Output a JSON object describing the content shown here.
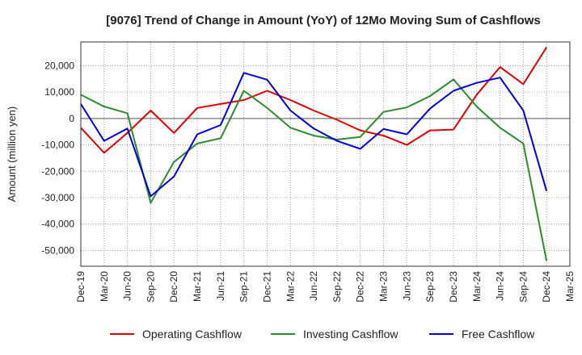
{
  "chart_data": {
    "type": "line",
    "title": "[9076]  Trend of Change in Amount (YoY) of 12Mo Moving Sum of Cashflows",
    "xlabel": "",
    "ylabel": "Amount (million yen)",
    "ylim": [
      -56000,
      29000
    ],
    "yticks": [
      20000,
      10000,
      0,
      -10000,
      -20000,
      -30000,
      -40000,
      -50000
    ],
    "ytick_labels": [
      "20,000",
      "10,000",
      "0",
      "-10,000",
      "-20,000",
      "-30,000",
      "-40,000",
      "-50,000"
    ],
    "categories": [
      "Dec-19",
      "Mar-20",
      "Jun-20",
      "Sep-20",
      "Dec-20",
      "Mar-21",
      "Jun-21",
      "Sep-21",
      "Dec-21",
      "Mar-22",
      "Jun-22",
      "Sep-22",
      "Dec-22",
      "Mar-23",
      "Jun-23",
      "Sep-23",
      "Dec-23",
      "Mar-24",
      "Jun-24",
      "Sep-24",
      "Dec-24",
      "Mar-25"
    ],
    "grid": true,
    "legend_position": "bottom",
    "series": [
      {
        "name": "Operating Cashflow",
        "color": "#e00000",
        "values": [
          -3500,
          -13000,
          -5500,
          3000,
          -5500,
          4000,
          5500,
          7000,
          10500,
          7000,
          3000,
          -500,
          -4500,
          -6500,
          -10000,
          -4500,
          -4200,
          9000,
          19500,
          13000,
          27000,
          null
        ]
      },
      {
        "name": "Investing Cashflow",
        "color": "#2e8b2e",
        "values": [
          9000,
          4500,
          2000,
          -32000,
          -16500,
          -9500,
          -7500,
          10500,
          4000,
          -3500,
          -6500,
          -8000,
          -7000,
          2500,
          4200,
          8500,
          14800,
          4500,
          -3500,
          -9500,
          -54000,
          null
        ]
      },
      {
        "name": "Free Cashflow",
        "color": "#0000dd",
        "values": [
          5500,
          -8500,
          -3800,
          -29500,
          -22000,
          -6000,
          -2500,
          17300,
          14700,
          3000,
          -3800,
          -8500,
          -11500,
          -4000,
          -6000,
          3800,
          10500,
          13500,
          15500,
          3000,
          -27500,
          null
        ]
      }
    ]
  }
}
